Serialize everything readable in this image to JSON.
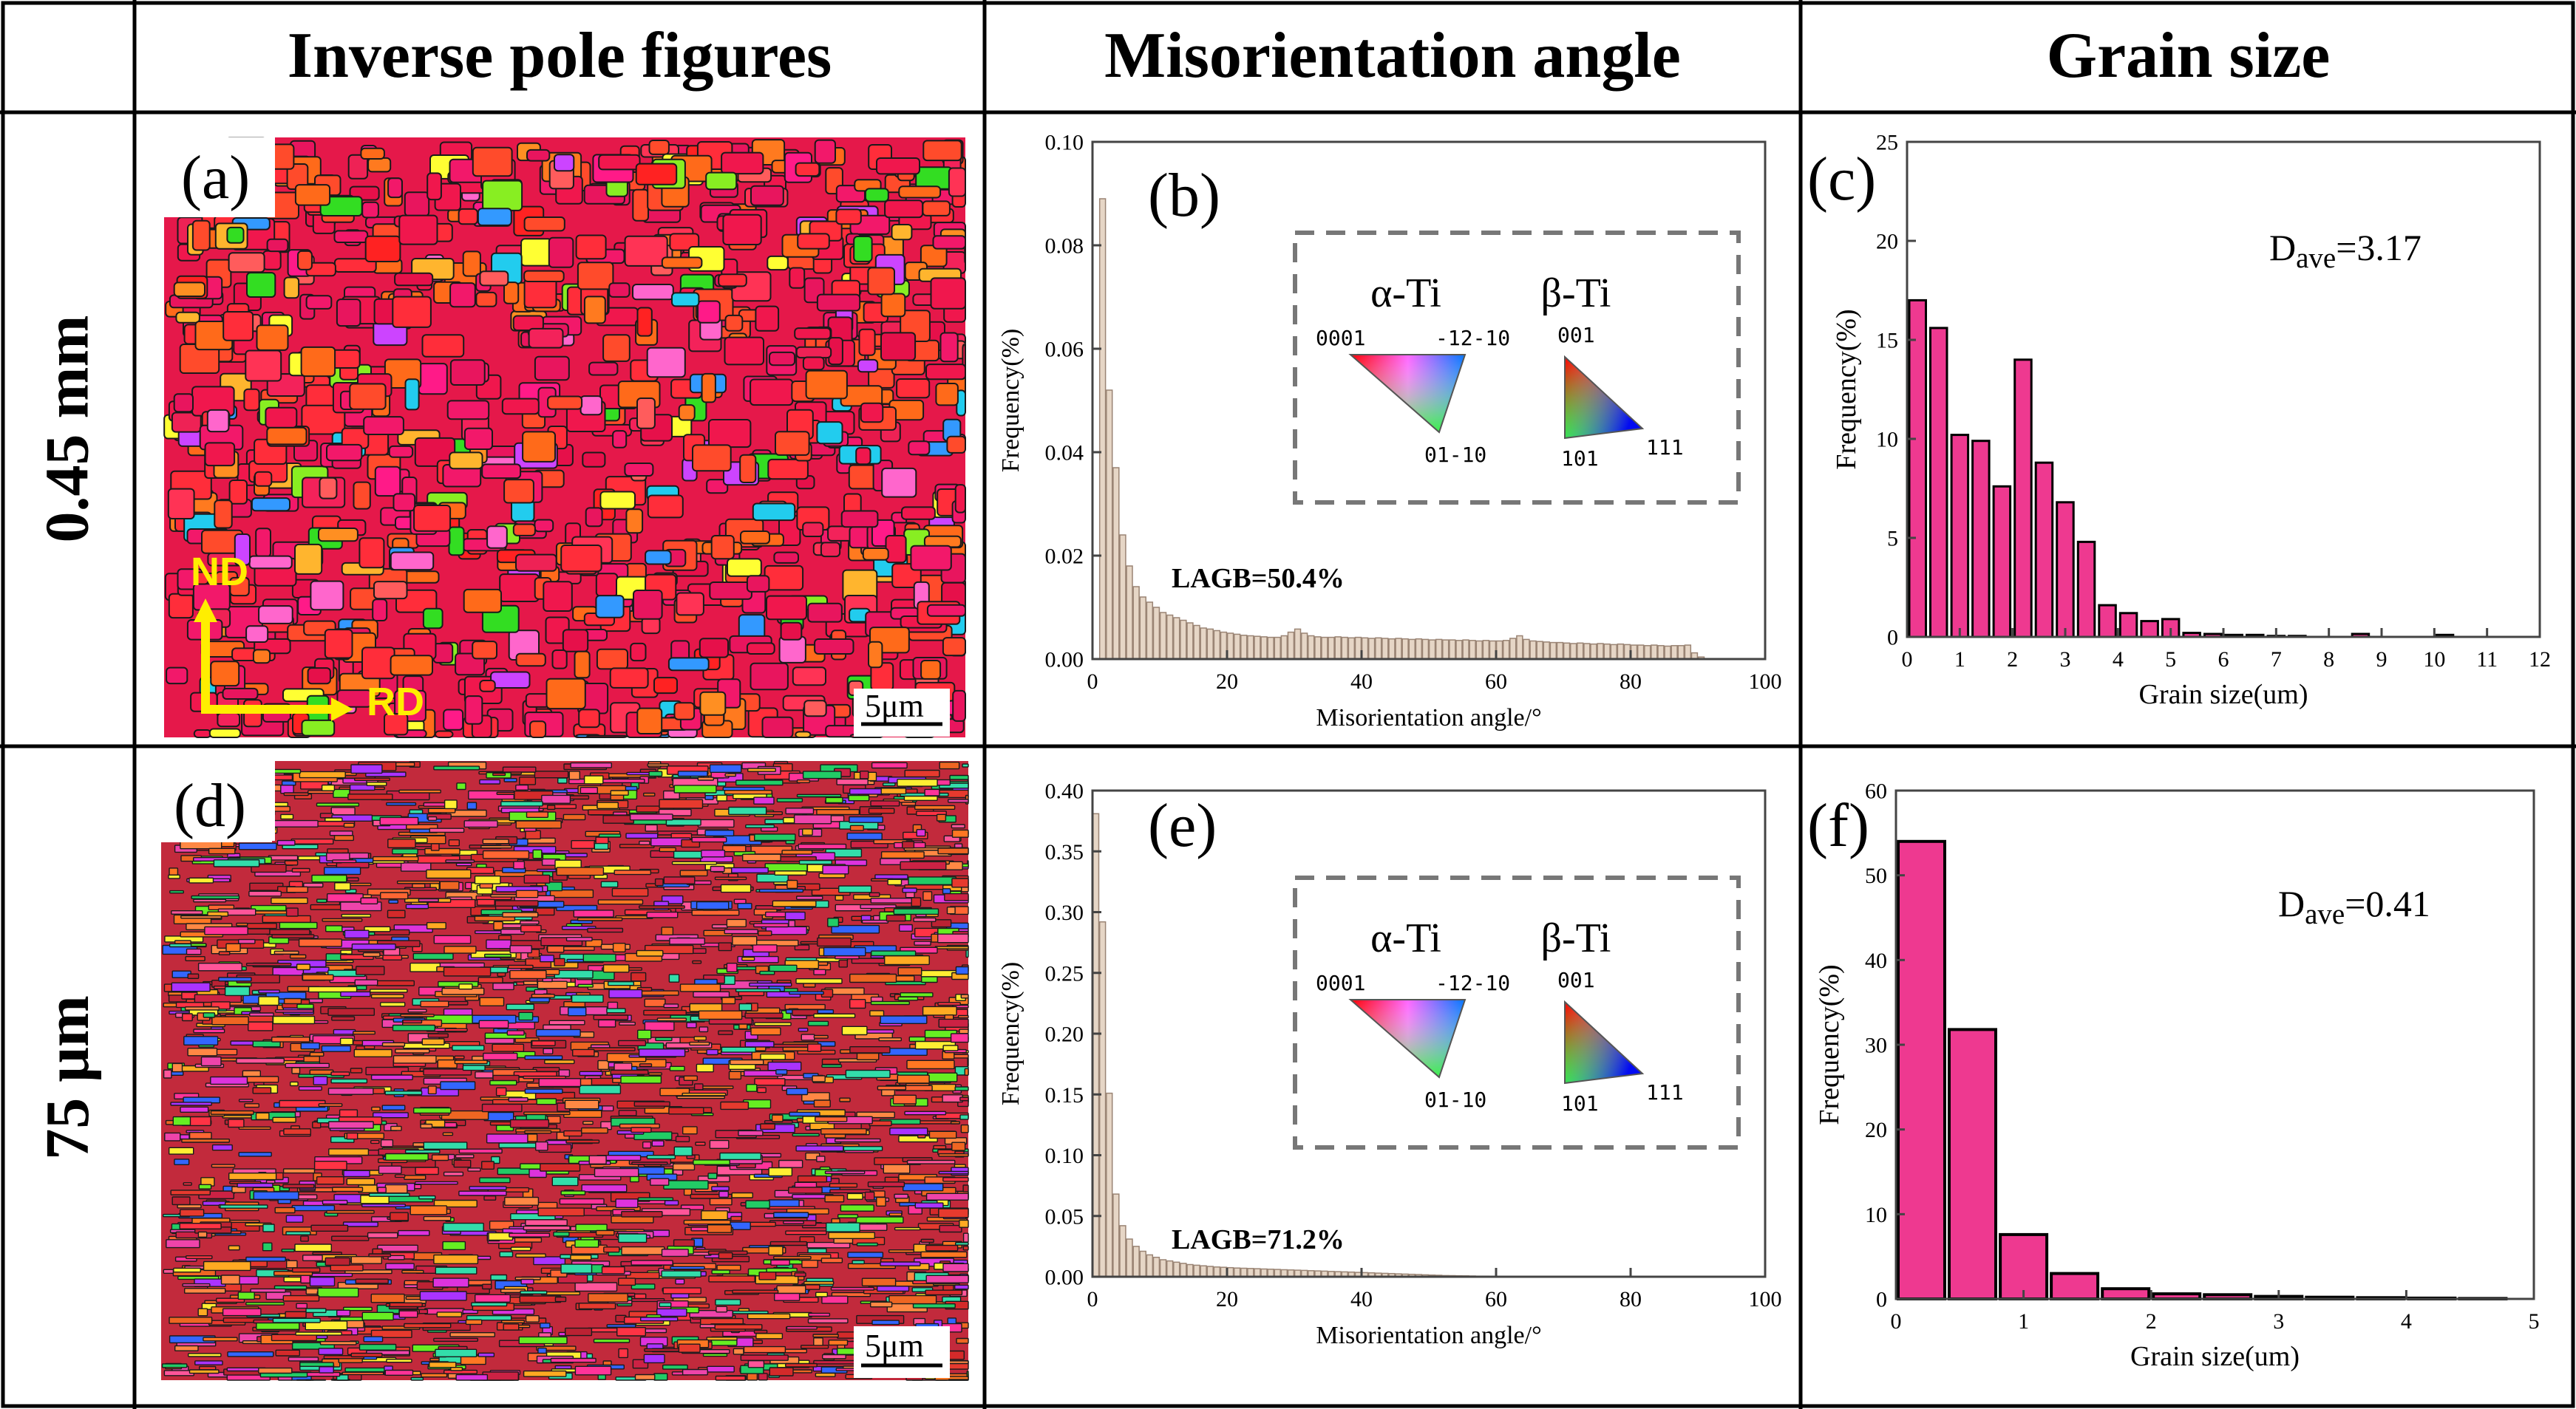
{
  "headers": {
    "col1": "Inverse pole figures",
    "col2": "Misorientation angle",
    "col3": "Grain size"
  },
  "rows": [
    {
      "label": "0.45 mm"
    },
    {
      "label": "75 μm"
    }
  ],
  "ipf": [
    {
      "letter": "(a)",
      "scale_bar": "5μm",
      "nd": "ND",
      "rd": "RD",
      "texture": "coarse"
    },
    {
      "letter": "(d)",
      "scale_bar": "5μm",
      "texture": "fine"
    }
  ],
  "legend": {
    "alpha_title": "α-Ti",
    "beta_title": "β-Ti",
    "alpha_corners": [
      "0001",
      "-12-10",
      "01-10"
    ],
    "beta_corners": [
      "001",
      "101",
      "111"
    ]
  },
  "colors": {
    "bar_hist": "#ee3990",
    "bar_misori": "#e6d6c6",
    "bar_misori_edge": "#9a8474",
    "frame": "#000000",
    "dash": "#777777"
  },
  "chart_data": [
    {
      "type": "bar",
      "panel": "(b)",
      "xlabel": "Misorientation angle/°",
      "ylabel": "Frequency(%)",
      "xlim": [
        0,
        100
      ],
      "ylim": [
        0,
        0.1
      ],
      "xticks": [
        "0",
        "20",
        "40",
        "60",
        "80",
        "100"
      ],
      "yticks": [
        "0.00",
        "0.02",
        "0.04",
        "0.06",
        "0.08",
        "0.10"
      ],
      "annotation": "LAGB=50.4%",
      "bin_width": 1,
      "x_start": 2,
      "values": [
        0.089,
        0.052,
        0.037,
        0.024,
        0.018,
        0.014,
        0.012,
        0.011,
        0.01,
        0.009,
        0.0085,
        0.008,
        0.0075,
        0.007,
        0.0065,
        0.006,
        0.0058,
        0.0055,
        0.0052,
        0.005,
        0.0048,
        0.0046,
        0.0045,
        0.0044,
        0.0043,
        0.0042,
        0.0042,
        0.0045,
        0.0052,
        0.0058,
        0.005,
        0.0045,
        0.0043,
        0.0042,
        0.0042,
        0.0043,
        0.0042,
        0.0041,
        0.0042,
        0.0041,
        0.004,
        0.0041,
        0.004,
        0.0039,
        0.004,
        0.0039,
        0.0038,
        0.0039,
        0.0038,
        0.0037,
        0.0038,
        0.0037,
        0.0037,
        0.0036,
        0.0037,
        0.0036,
        0.0035,
        0.0036,
        0.0035,
        0.0035,
        0.0036,
        0.004,
        0.0045,
        0.0038,
        0.0035,
        0.0034,
        0.0033,
        0.0032,
        0.0032,
        0.0031,
        0.003,
        0.0031,
        0.003,
        0.0029,
        0.003,
        0.0029,
        0.0028,
        0.0029,
        0.0028,
        0.0027,
        0.0027,
        0.0026,
        0.0027,
        0.0026,
        0.0025,
        0.0026,
        0.0026,
        0.0027,
        0.0012,
        0.0004
      ]
    },
    {
      "type": "bar",
      "panel": "(e)",
      "xlabel": "Misorientation angle/°",
      "ylabel": "Frequency(%)",
      "xlim": [
        0,
        100
      ],
      "ylim": [
        0,
        0.4
      ],
      "xticks": [
        "0",
        "20",
        "40",
        "60",
        "80",
        "100"
      ],
      "yticks": [
        "0.00",
        "0.05",
        "0.10",
        "0.15",
        "0.20",
        "0.25",
        "0.30",
        "0.35",
        "0.40"
      ],
      "annotation": "LAGB=71.2%",
      "bin_width": 1,
      "x_start": 1,
      "values": [
        0.381,
        0.292,
        0.151,
        0.068,
        0.042,
        0.031,
        0.025,
        0.021,
        0.018,
        0.016,
        0.014,
        0.013,
        0.012,
        0.011,
        0.01,
        0.0095,
        0.009,
        0.0085,
        0.008,
        0.0078,
        0.0075,
        0.0072,
        0.007,
        0.0068,
        0.0066,
        0.0064,
        0.0062,
        0.006,
        0.0058,
        0.0056,
        0.0054,
        0.0052,
        0.005,
        0.0048,
        0.0046,
        0.0044,
        0.0042,
        0.004,
        0.0038,
        0.0036,
        0.0034,
        0.0032,
        0.003,
        0.0028,
        0.0026,
        0.0024,
        0.0022,
        0.002,
        0.0018,
        0.0016,
        0.0014,
        0.0012,
        0.001,
        0.0009,
        0.0008,
        0.0007,
        0.0006,
        0.0005,
        0.0005,
        0.0004,
        0.0004,
        0.0003,
        0.0003,
        0.0003,
        0.0002,
        0.0002
      ]
    },
    {
      "type": "bar",
      "panel": "(c)",
      "xlabel": "Grain size(um)",
      "ylabel": "Frequency(%)",
      "xlim": [
        0,
        12
      ],
      "ylim": [
        0,
        25
      ],
      "xticks": [
        "0",
        "1",
        "2",
        "3",
        "4",
        "5",
        "6",
        "7",
        "8",
        "9",
        "10",
        "11",
        "12"
      ],
      "yticks": [
        "0",
        "5",
        "10",
        "15",
        "20",
        "25"
      ],
      "annotation_main": "D",
      "annotation_sub": "ave",
      "annotation_value": "=3.17",
      "bin_width": 0.4,
      "x": [
        0.2,
        0.6,
        1.0,
        1.4,
        1.8,
        2.2,
        2.6,
        3.0,
        3.4,
        3.8,
        4.2,
        4.6,
        5.0,
        5.4,
        5.8,
        6.2,
        6.6,
        7.0,
        7.4,
        8.6,
        10.2
      ],
      "values": [
        17.0,
        15.6,
        10.2,
        9.9,
        7.6,
        14.0,
        8.8,
        6.8,
        4.8,
        1.6,
        1.2,
        0.8,
        0.9,
        0.2,
        0.15,
        0.1,
        0.1,
        0.05,
        0.05,
        0.15,
        0.1
      ]
    },
    {
      "type": "bar",
      "panel": "(f)",
      "xlabel": "Grain size(um)",
      "ylabel": "Frequency(%)",
      "xlim": [
        0,
        5
      ],
      "ylim": [
        0,
        60
      ],
      "xticks": [
        "0",
        "1",
        "2",
        "3",
        "4",
        "5"
      ],
      "yticks": [
        "0",
        "10",
        "20",
        "30",
        "40",
        "50",
        "60"
      ],
      "annotation_main": "D",
      "annotation_sub": "ave",
      "annotation_value": "=0.41",
      "bin_width": 0.4,
      "x": [
        0.2,
        0.6,
        1.0,
        1.4,
        1.8,
        2.2,
        2.6,
        3.0,
        3.4,
        3.8,
        4.2,
        4.6
      ],
      "values": [
        54.0,
        31.8,
        7.6,
        3.0,
        1.2,
        0.6,
        0.5,
        0.3,
        0.2,
        0.15,
        0.1,
        0.05
      ]
    }
  ]
}
